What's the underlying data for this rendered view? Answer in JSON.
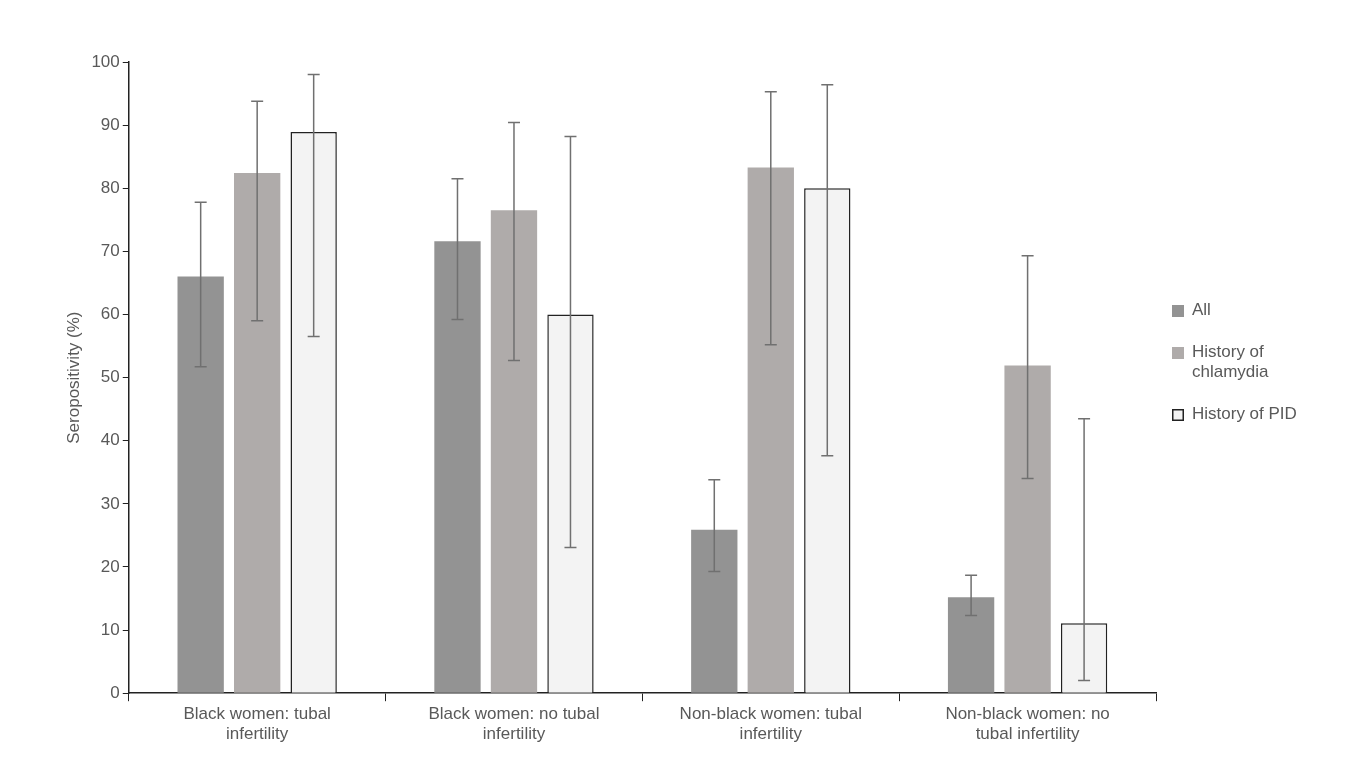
{
  "chart_data": {
    "type": "bar",
    "ylabel": "Seropositivity (%)",
    "categories": [
      "Black women: tubal infertility",
      "Black women: no tubal infertility",
      "Non-black women: tubal infertility",
      "Non-black women: no tubal infertility"
    ],
    "series": [
      {
        "name": "All",
        "color": "#939393",
        "values": [
          66,
          71.6,
          25.9,
          15.2
        ],
        "errors": [
          [
            51.7,
            77.8
          ],
          [
            59.2,
            81.5
          ],
          [
            19.3,
            33.8
          ],
          [
            12.3,
            18.7
          ]
        ]
      },
      {
        "name": "History of chlamydia",
        "color": "#afabaa",
        "values": [
          82.4,
          76.5,
          83.3,
          51.9
        ],
        "errors": [
          [
            59,
            93.8
          ],
          [
            52.7,
            90.4
          ],
          [
            55.2,
            95.3
          ],
          [
            34,
            69.3
          ]
        ]
      },
      {
        "name": "History of PID",
        "color": "#f3f3f3",
        "values": [
          88.9,
          60,
          80,
          11.1
        ],
        "errors": [
          [
            56.5,
            98
          ],
          [
            23.1,
            88.2
          ],
          [
            37.6,
            96.4
          ],
          [
            2,
            43.5
          ]
        ]
      }
    ],
    "ylim": [
      0,
      100
    ],
    "yticks": [
      0,
      10,
      20,
      30,
      40,
      50,
      60,
      70,
      80,
      90,
      100
    ],
    "grid": false,
    "legend": "right"
  }
}
